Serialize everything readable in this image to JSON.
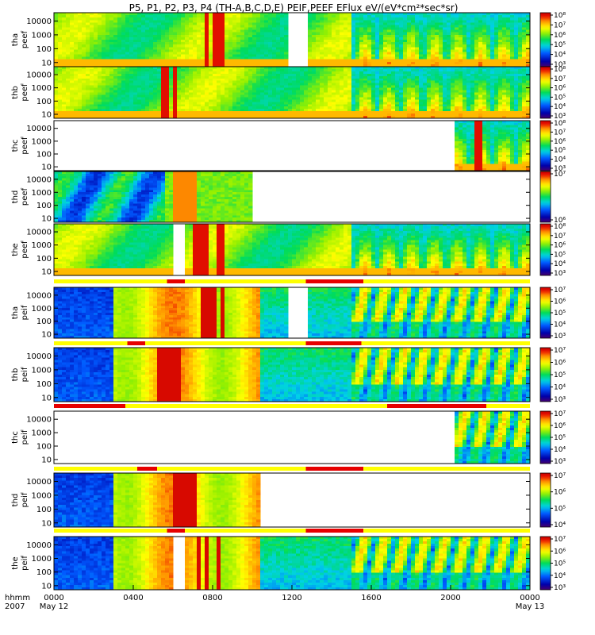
{
  "chart_data": {
    "type": "heatmap",
    "title": "P5, P1, P2, P3, P4 (TH-A,B,C,D,E) PEIF,PEEF EFlux eV/(eV*cm²*sec*sr)",
    "x_axis": {
      "label_top": "hhmm",
      "label_bottom": "2007",
      "range_hours": [
        0,
        24
      ],
      "ticks": [
        {
          "hour": 0,
          "label": "0000",
          "sub": "May 12"
        },
        {
          "hour": 4,
          "label": "0400",
          "sub": ""
        },
        {
          "hour": 8,
          "label": "0800",
          "sub": ""
        },
        {
          "hour": 12,
          "label": "1200",
          "sub": ""
        },
        {
          "hour": 16,
          "label": "1600",
          "sub": ""
        },
        {
          "hour": 20,
          "label": "2000",
          "sub": ""
        },
        {
          "hour": 24,
          "label": "0000",
          "sub": "May 13"
        }
      ]
    },
    "y_ticks": [
      "10000",
      "1000",
      "100",
      "10"
    ],
    "y_log_range": [
      5,
      40000
    ],
    "panels": [
      {
        "probe": "tha",
        "product": "peef",
        "cbar": [
          "10³",
          "10⁴",
          "10⁵",
          "10⁶",
          "10⁷",
          "10⁸"
        ],
        "gaps": [
          [
            11.9,
            12.7
          ]
        ],
        "data_range": [
          0,
          24
        ],
        "mode": "electron",
        "stripes": [
          7.7,
          8.1,
          8.4
        ],
        "seed": 1
      },
      {
        "probe": "thb",
        "product": "peef",
        "cbar": [
          "10³",
          "10⁴",
          "10⁵",
          "10⁶",
          "10⁷",
          "10⁸"
        ],
        "gaps": [],
        "data_range": [
          0,
          24
        ],
        "mode": "electron",
        "stripes": [
          5.6,
          6.1
        ],
        "seed": 2
      },
      {
        "probe": "thc",
        "product": "peef",
        "cbar": [
          "10³",
          "10⁴",
          "10⁵",
          "10⁶",
          "10⁷",
          "10⁸"
        ],
        "gaps": [],
        "data_range": [
          20.3,
          24
        ],
        "mode": "electron",
        "stripes": [
          21.4
        ],
        "seed": 3
      },
      {
        "probe": "thd",
        "product": "peef",
        "cbar": [
          "10⁶",
          "10⁷"
        ],
        "gaps": [],
        "data_range": [
          0,
          10.0
        ],
        "mode": "electron_blue",
        "stripes": [
          6.2,
          6.6,
          7.0
        ],
        "seed": 4
      },
      {
        "probe": "the",
        "product": "peef",
        "cbar": [
          "10³",
          "10⁴",
          "10⁵",
          "10⁶",
          "10⁷",
          "10⁸"
        ],
        "gaps": [
          [
            6.0,
            6.5
          ]
        ],
        "data_range": [
          0,
          24
        ],
        "mode": "electron",
        "stripes": [
          7.2,
          7.6,
          8.4
        ],
        "seed": 5
      },
      {
        "probe": "tha",
        "product": "peif",
        "cbar": [
          "10³",
          "10⁴",
          "10⁵",
          "10⁶",
          "10⁷"
        ],
        "gaps": [
          [
            11.9,
            12.7
          ]
        ],
        "data_range": [
          0,
          24
        ],
        "mode": "ion",
        "stripes": [
          7.6,
          8.0,
          8.5
        ],
        "seed": 6
      },
      {
        "probe": "thb",
        "product": "peif",
        "cbar": [
          "10³",
          "10⁴",
          "10⁵",
          "10⁶",
          "10⁷"
        ],
        "gaps": [],
        "data_range": [
          0,
          24
        ],
        "mode": "ion",
        "stripes": [
          5.4,
          5.8,
          6.2
        ],
        "seed": 7
      },
      {
        "probe": "thc",
        "product": "peif",
        "cbar": [
          "10³",
          "10⁴",
          "10⁵",
          "10⁶",
          "10⁷"
        ],
        "gaps": [],
        "data_range": [
          20.2,
          24
        ],
        "mode": "ion",
        "stripes": [],
        "seed": 8
      },
      {
        "probe": "thd",
        "product": "peif",
        "cbar": [
          "10⁴",
          "10⁵",
          "10⁶",
          "10⁷"
        ],
        "gaps": [],
        "data_range": [
          0,
          10.3
        ],
        "mode": "ion",
        "stripes": [
          6.2,
          6.6,
          7.0
        ],
        "seed": 9
      },
      {
        "probe": "the",
        "product": "peif",
        "cbar": [
          "10³",
          "10⁴",
          "10⁵",
          "10⁶",
          "10⁷"
        ],
        "gaps": [
          [
            6.0,
            6.5
          ]
        ],
        "data_range": [
          0,
          24
        ],
        "mode": "ion",
        "stripes": [
          7.3,
          7.7,
          8.3
        ],
        "seed": 10
      }
    ],
    "mode_bars": [
      {
        "between": [
          4,
          5
        ],
        "red_hours": [
          [
            5.7,
            6.6
          ],
          [
            12.7,
            15.6
          ]
        ]
      },
      {
        "between": [
          5,
          6
        ],
        "red_hours": [
          [
            3.7,
            4.6
          ],
          [
            12.7,
            15.5
          ]
        ]
      },
      {
        "between": [
          6,
          7
        ],
        "red_hours": [
          [
            0,
            3.6
          ],
          [
            16.8,
            21.8
          ]
        ]
      },
      {
        "between": [
          7,
          8
        ],
        "red_hours": [
          [
            4.2,
            5.2
          ],
          [
            12.7,
            15.6
          ]
        ]
      },
      {
        "between": [
          8,
          9
        ],
        "red_hours": [
          [
            5.7,
            6.6
          ],
          [
            12.7,
            15.6
          ]
        ]
      }
    ],
    "colors": {
      "bar_yellow": "#ffff00",
      "bar_red": "#e60000",
      "gap": "#ffffff"
    }
  }
}
